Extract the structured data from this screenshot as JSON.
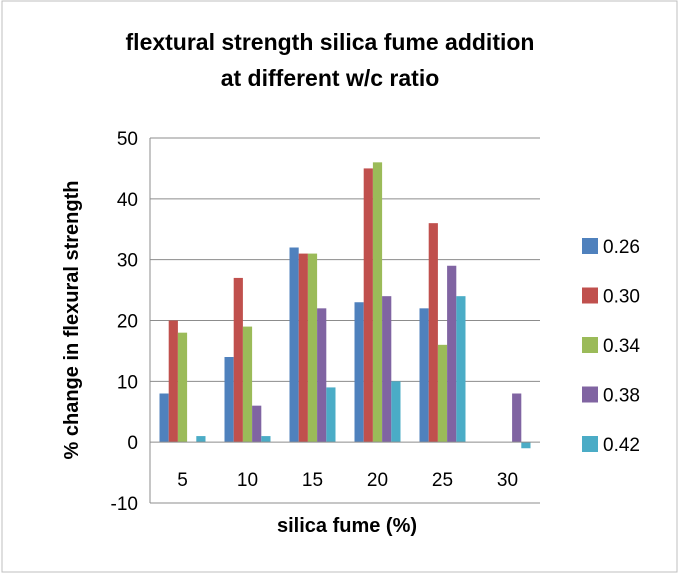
{
  "chart_data": {
    "type": "bar",
    "title": [
      "flextural strength silica fume addition",
      "at different w/c ratio"
    ],
    "xlabel": "silica fume (%)",
    "ylabel": "% change in flexural strength",
    "categories": [
      "5",
      "10",
      "15",
      "20",
      "25",
      "30"
    ],
    "ylim": [
      -10,
      50
    ],
    "yticks": [
      -10,
      0,
      10,
      20,
      30,
      40,
      50
    ],
    "grid": true,
    "legend_position": "right",
    "series": [
      {
        "name": "0.26",
        "color": "#4F81BD",
        "values": [
          8,
          14,
          32,
          23,
          22,
          0
        ]
      },
      {
        "name": "0.30",
        "color": "#C0504D",
        "values": [
          20,
          27,
          31,
          45,
          36,
          0
        ]
      },
      {
        "name": "0.34",
        "color": "#9BBB59",
        "values": [
          18,
          19,
          31,
          46,
          16,
          0
        ]
      },
      {
        "name": "0.38",
        "color": "#8064A2",
        "values": [
          0,
          6,
          22,
          24,
          29,
          8
        ]
      },
      {
        "name": "0.42",
        "color": "#4BACC6",
        "values": [
          1,
          1,
          9,
          10,
          24,
          -1
        ]
      }
    ]
  }
}
